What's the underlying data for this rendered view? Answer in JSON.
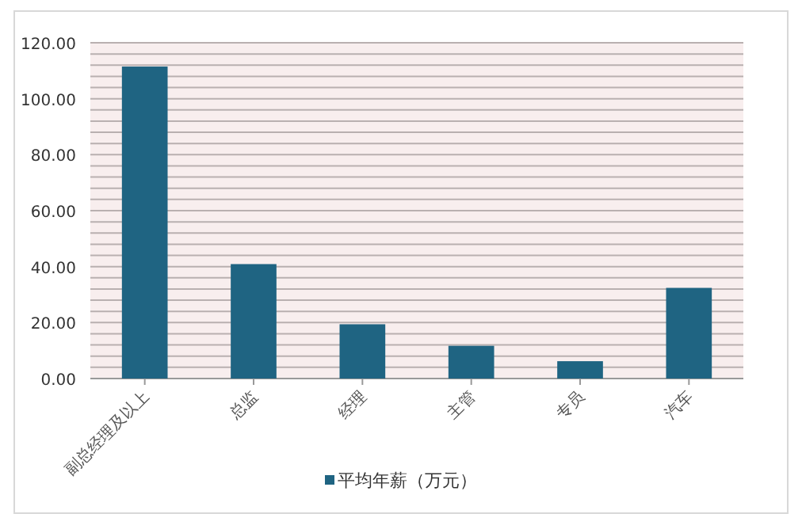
{
  "chart_data": {
    "type": "bar",
    "categories": [
      "副总经理及以上",
      "总监",
      "经理",
      "主管",
      "专员",
      "汽车"
    ],
    "series": [
      {
        "name": "平均年薪（万元）",
        "color": "#1f6482",
        "values": [
          111.5,
          40.9,
          19.4,
          11.7,
          6.2,
          32.4
        ]
      }
    ],
    "ylim": [
      0,
      120
    ],
    "yticks": [
      {
        "value": 0,
        "label": "0.00"
      },
      {
        "value": 4,
        "label": null
      },
      {
        "value": 8,
        "label": null
      },
      {
        "value": 12,
        "label": null
      },
      {
        "value": 16,
        "label": null
      },
      {
        "value": 20,
        "label": "20.00"
      },
      {
        "value": 24,
        "label": null
      },
      {
        "value": 28,
        "label": null
      },
      {
        "value": 32,
        "label": null
      },
      {
        "value": 36,
        "label": null
      },
      {
        "value": 40,
        "label": "40.00"
      },
      {
        "value": 44,
        "label": null
      },
      {
        "value": 48,
        "label": null
      },
      {
        "value": 52,
        "label": null
      },
      {
        "value": 56,
        "label": null
      },
      {
        "value": 60,
        "label": "60.00"
      },
      {
        "value": 64,
        "label": null
      },
      {
        "value": 68,
        "label": null
      },
      {
        "value": 72,
        "label": null
      },
      {
        "value": 76,
        "label": null
      },
      {
        "value": 80,
        "label": "80.00"
      },
      {
        "value": 84,
        "label": null
      },
      {
        "value": 88,
        "label": null
      },
      {
        "value": 92,
        "label": null
      },
      {
        "value": 96,
        "label": null
      },
      {
        "value": 100,
        "label": "100.00"
      },
      {
        "value": 104,
        "label": null
      },
      {
        "value": 108,
        "label": null
      },
      {
        "value": 112,
        "label": null
      },
      {
        "value": 116,
        "label": null
      },
      {
        "value": 120,
        "label": "120.00"
      }
    ],
    "grid": "y",
    "legend": "bottom"
  }
}
